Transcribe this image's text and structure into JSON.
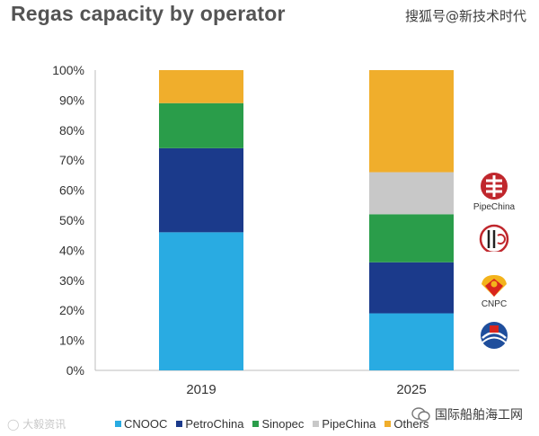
{
  "title": "Regas capacity by operator",
  "watermarks": {
    "top_right": "搜狐号@新技术时代",
    "bottom_left": "大毅资讯",
    "bottom_right": "国际船舶海工网"
  },
  "chart_data": {
    "type": "bar",
    "stacked": true,
    "categories": [
      "2019",
      "2025"
    ],
    "series": [
      {
        "name": "CNOOC",
        "color": "#29abe2",
        "values": [
          46,
          19
        ]
      },
      {
        "name": "PetroChina",
        "color": "#1b3a8b",
        "values": [
          28,
          17
        ]
      },
      {
        "name": "Sinopec",
        "color": "#2a9d4a",
        "values": [
          15,
          16
        ]
      },
      {
        "name": "PipeChina",
        "color": "#c8c8c8",
        "values": [
          0,
          14
        ]
      },
      {
        "name": "Others",
        "color": "#f0ae2c",
        "values": [
          11,
          34
        ]
      }
    ],
    "ylim": [
      0,
      100
    ],
    "yticks": [
      "0%",
      "10%",
      "20%",
      "30%",
      "40%",
      "50%",
      "60%",
      "70%",
      "80%",
      "90%",
      "100%"
    ],
    "legend_position": "bottom",
    "grid": false
  },
  "logos": [
    {
      "name": "pipechina",
      "label": "PipeChina",
      "color": "#c0272d"
    },
    {
      "name": "sinopec",
      "label": "",
      "color": "#c0272d"
    },
    {
      "name": "cnpc",
      "label": "CNPC",
      "color": "#d9251d"
    },
    {
      "name": "cnooc",
      "label": "",
      "color": "#1f4e9c"
    }
  ]
}
